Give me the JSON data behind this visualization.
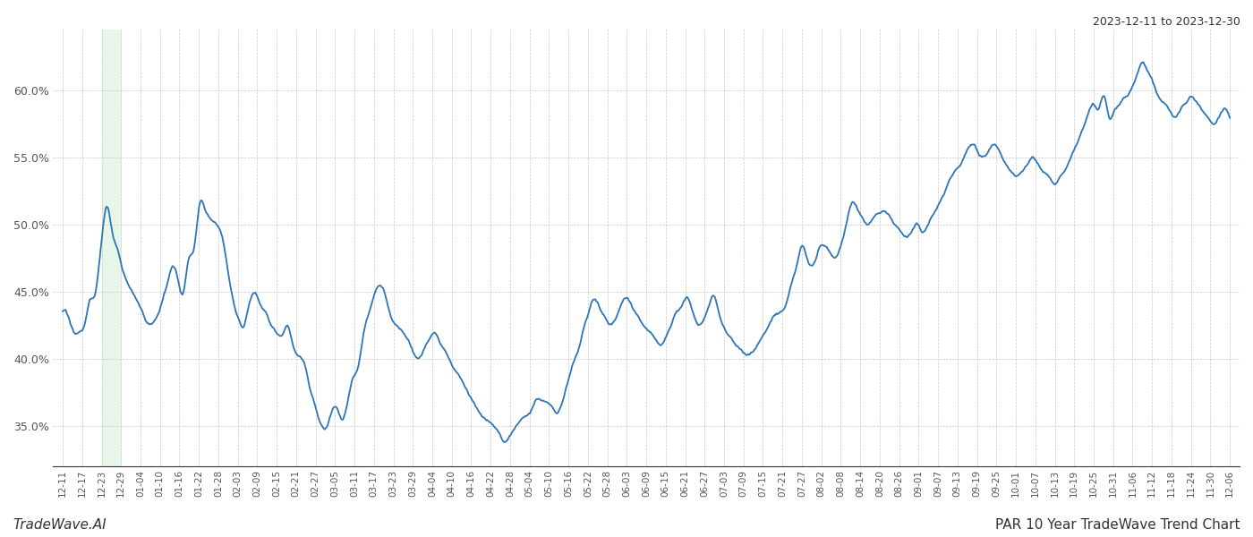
{
  "title_top_right": "2023-12-11 to 2023-12-30",
  "title_bottom_left": "TradeWave.AI",
  "title_bottom_right": "PAR 10 Year TradeWave Trend Chart",
  "line_color": "#2E75B6",
  "line_width": 1.3,
  "background_color": "#ffffff",
  "grid_color": "#c8c8c8",
  "highlight_start_label": "12-23",
  "highlight_end_label": "12-29",
  "highlight_color": "#e8f5e9",
  "ylim": [
    32.0,
    64.5
  ],
  "yticks": [
    35.0,
    40.0,
    45.0,
    50.0,
    55.0,
    60.0
  ],
  "x_labels": [
    "12-11",
    "12-17",
    "12-23",
    "12-29",
    "01-04",
    "01-10",
    "01-16",
    "01-22",
    "01-28",
    "02-03",
    "02-09",
    "02-15",
    "02-21",
    "02-27",
    "03-05",
    "03-11",
    "03-17",
    "03-23",
    "03-29",
    "04-04",
    "04-10",
    "04-16",
    "04-22",
    "04-28",
    "05-04",
    "05-10",
    "05-16",
    "05-22",
    "05-28",
    "06-03",
    "06-09",
    "06-15",
    "06-21",
    "06-27",
    "07-03",
    "07-09",
    "07-15",
    "07-21",
    "07-27",
    "08-02",
    "08-08",
    "08-14",
    "08-20",
    "08-26",
    "09-01",
    "09-07",
    "09-13",
    "09-19",
    "09-25",
    "10-01",
    "10-07",
    "10-13",
    "10-19",
    "10-25",
    "10-31",
    "11-06",
    "11-12",
    "11-18",
    "11-24",
    "11-30",
    "12-06"
  ],
  "y_values": [
    43.5,
    43.2,
    42.0,
    41.8,
    42.5,
    44.5,
    45.0,
    48.5,
    51.2,
    49.5,
    48.0,
    46.5,
    45.5,
    44.8,
    44.0,
    43.0,
    42.5,
    43.0,
    44.0,
    45.5,
    46.8,
    46.0,
    44.8,
    47.5,
    48.2,
    51.5,
    51.0,
    50.5,
    50.0,
    49.2,
    47.0,
    44.5,
    43.0,
    42.5,
    44.0,
    45.0,
    44.0,
    43.5,
    42.5,
    42.0,
    41.8,
    42.5,
    41.0,
    40.2,
    39.8,
    38.0,
    36.5,
    35.2,
    34.8,
    36.0,
    36.5,
    35.5,
    36.8,
    38.5,
    39.5,
    42.0,
    43.5,
    45.0,
    45.5,
    44.5,
    43.0,
    42.5,
    42.0,
    41.5,
    40.5,
    40.0,
    40.8,
    41.5,
    42.0,
    41.0,
    40.5,
    39.5,
    39.0,
    38.2,
    37.5,
    36.8,
    36.0,
    35.5,
    35.2,
    34.8,
    34.2,
    33.8,
    34.5,
    35.0,
    35.5,
    36.0,
    36.5,
    37.0,
    36.8,
    36.5,
    36.0,
    36.5,
    38.0,
    39.5,
    40.5,
    42.0,
    43.5,
    44.5,
    43.8,
    43.0,
    42.5,
    43.0,
    44.0,
    44.5,
    43.8,
    43.0,
    42.5,
    42.0,
    41.5,
    41.0,
    41.5,
    42.5,
    43.5,
    44.0,
    44.5,
    43.5,
    42.5,
    43.0,
    44.0,
    44.5,
    43.0,
    42.0,
    41.5,
    41.0,
    40.5,
    40.2,
    40.5,
    41.2,
    41.8,
    42.5,
    43.2,
    43.5,
    44.0,
    45.5,
    47.0,
    48.5,
    47.5,
    47.0,
    48.2,
    48.5,
    48.0,
    47.5,
    48.5,
    50.0,
    51.5,
    51.2,
    50.5,
    50.0,
    50.5,
    50.8,
    51.0,
    50.5,
    50.0,
    49.5,
    49.0,
    49.5,
    50.0,
    49.5,
    50.0,
    50.8,
    51.5,
    52.5,
    53.5,
    54.0,
    54.5,
    55.5,
    56.0,
    55.5,
    55.0,
    55.5,
    56.0,
    55.5,
    54.5,
    54.0,
    53.5,
    54.0,
    54.5,
    55.0,
    54.5,
    54.0,
    53.5,
    53.0,
    53.5,
    54.0,
    55.0,
    56.0,
    57.0,
    58.0,
    59.0,
    58.5,
    59.5,
    58.0,
    58.5,
    59.0,
    59.5,
    60.0,
    61.0,
    62.0,
    61.5,
    60.5,
    59.5,
    59.0,
    58.5,
    58.0,
    58.5,
    59.0,
    59.5,
    59.0,
    58.5,
    58.0,
    57.5,
    58.0,
    58.5,
    58.0
  ]
}
